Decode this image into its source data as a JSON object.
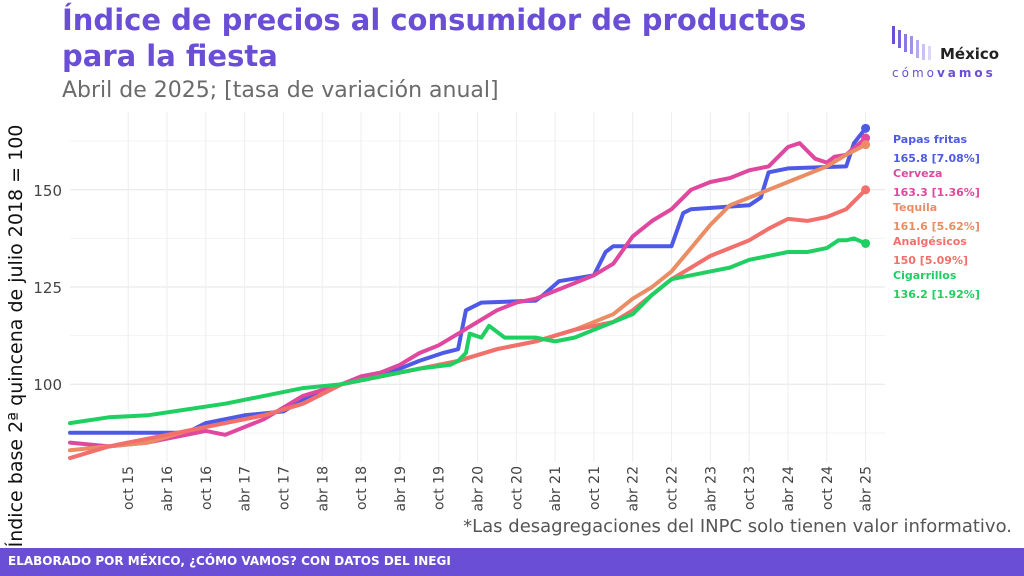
{
  "header": {
    "title": "Índice de precios al consumidor de productos para la fiesta",
    "subtitle": "Abril de 2025; [tasa de variación anual]"
  },
  "logo": {
    "word": "México",
    "sub_a": "cómo",
    "sub_b": "vamos"
  },
  "note": "*Las desagregaciones del INPC solo tienen valor informativo.",
  "footer": {
    "text": "ELABORADO POR MÉXICO, ¿CÓMO VAMOS? CON DATOS DEL INEGI"
  },
  "colors": {
    "accent": "#6a4fd6",
    "papas": "#4e5ae6",
    "cerveza": "#e0479e",
    "tequila": "#ea8d64",
    "analgesicos": "#f2706b",
    "cigarrillos": "#1fcf62"
  },
  "chart_data": {
    "type": "line",
    "title": "Índice de precios al consumidor de productos para la fiesta",
    "subtitle": "Abril de 2025; [tasa de variación anual]",
    "ylabel": "Índice base 2ª quincena de julio 2018 = 100",
    "xlabel": "",
    "xlim": [
      2015.0,
      2025.5
    ],
    "ylim": [
      80,
      170
    ],
    "yticks": [
      100,
      125,
      150
    ],
    "ytick_labels": [
      "100",
      "125",
      "150"
    ],
    "xticks": [
      {
        "x": 2015.75,
        "label": "oct 15"
      },
      {
        "x": 2016.25,
        "label": "abr 16"
      },
      {
        "x": 2016.75,
        "label": "oct 16"
      },
      {
        "x": 2017.25,
        "label": "abr 17"
      },
      {
        "x": 2017.75,
        "label": "oct 17"
      },
      {
        "x": 2018.25,
        "label": "abr 18"
      },
      {
        "x": 2018.75,
        "label": "oct 18"
      },
      {
        "x": 2019.25,
        "label": "abr 19"
      },
      {
        "x": 2019.75,
        "label": "oct 19"
      },
      {
        "x": 2020.25,
        "label": "abr 20"
      },
      {
        "x": 2020.75,
        "label": "oct 20"
      },
      {
        "x": 2021.25,
        "label": "abr 21"
      },
      {
        "x": 2021.75,
        "label": "oct 21"
      },
      {
        "x": 2022.25,
        "label": "abr 22"
      },
      {
        "x": 2022.75,
        "label": "oct 22"
      },
      {
        "x": 2023.25,
        "label": "abr 23"
      },
      {
        "x": 2023.75,
        "label": "oct 23"
      },
      {
        "x": 2024.25,
        "label": "abr 24"
      },
      {
        "x": 2024.75,
        "label": "oct 24"
      },
      {
        "x": 2025.25,
        "label": "abr 25"
      }
    ],
    "grid": true,
    "legend": "right",
    "series": [
      {
        "name": "Papas fritas",
        "end_label": "165.8 [7.08%]",
        "color": "#4e5ae6",
        "points": [
          [
            2015.0,
            87.5
          ],
          [
            2016.5,
            87.5
          ],
          [
            2016.75,
            90
          ],
          [
            2017.25,
            92
          ],
          [
            2017.75,
            93
          ],
          [
            2018.0,
            96
          ],
          [
            2018.5,
            100
          ],
          [
            2019.0,
            102
          ],
          [
            2019.5,
            106
          ],
          [
            2019.8,
            108
          ],
          [
            2020.0,
            109
          ],
          [
            2020.1,
            119
          ],
          [
            2020.3,
            121
          ],
          [
            2021.0,
            121.5
          ],
          [
            2021.1,
            123
          ],
          [
            2021.3,
            126.5
          ],
          [
            2021.75,
            128
          ],
          [
            2021.9,
            134
          ],
          [
            2022.0,
            135.5
          ],
          [
            2022.75,
            135.5
          ],
          [
            2022.9,
            144
          ],
          [
            2023.0,
            145
          ],
          [
            2023.75,
            146
          ],
          [
            2023.9,
            148
          ],
          [
            2024.0,
            154.5
          ],
          [
            2024.25,
            155.5
          ],
          [
            2025.0,
            156
          ],
          [
            2025.1,
            162
          ],
          [
            2025.25,
            165.8
          ]
        ]
      },
      {
        "name": "Cerveza",
        "end_label": "163.3 [1.36%]",
        "color": "#e0479e",
        "points": [
          [
            2015.0,
            85
          ],
          [
            2015.5,
            84
          ],
          [
            2016.0,
            85
          ],
          [
            2016.5,
            87
          ],
          [
            2016.75,
            88
          ],
          [
            2017.0,
            87
          ],
          [
            2017.5,
            91
          ],
          [
            2018.0,
            97
          ],
          [
            2018.5,
            100
          ],
          [
            2018.75,
            102
          ],
          [
            2019.0,
            103
          ],
          [
            2019.25,
            105
          ],
          [
            2019.5,
            108
          ],
          [
            2019.75,
            110
          ],
          [
            2020.0,
            113
          ],
          [
            2020.25,
            116
          ],
          [
            2020.5,
            119
          ],
          [
            2020.75,
            121
          ],
          [
            2021.0,
            122
          ],
          [
            2021.5,
            126
          ],
          [
            2021.75,
            128
          ],
          [
            2022.0,
            131
          ],
          [
            2022.25,
            138
          ],
          [
            2022.5,
            142
          ],
          [
            2022.75,
            145
          ],
          [
            2023.0,
            150
          ],
          [
            2023.25,
            152
          ],
          [
            2023.5,
            153
          ],
          [
            2023.75,
            155
          ],
          [
            2024.0,
            156
          ],
          [
            2024.25,
            161
          ],
          [
            2024.4,
            162
          ],
          [
            2024.6,
            158
          ],
          [
            2024.75,
            157
          ],
          [
            2024.85,
            158.5
          ],
          [
            2025.0,
            159
          ],
          [
            2025.25,
            163.3
          ]
        ]
      },
      {
        "name": "Tequila",
        "end_label": "161.6 [5.62%]",
        "color": "#ea8d64",
        "points": [
          [
            2015.0,
            83
          ],
          [
            2015.5,
            84
          ],
          [
            2016.0,
            85
          ],
          [
            2016.5,
            88
          ],
          [
            2017.0,
            90
          ],
          [
            2017.5,
            92
          ],
          [
            2018.0,
            95
          ],
          [
            2018.5,
            100
          ],
          [
            2019.0,
            102
          ],
          [
            2019.5,
            104
          ],
          [
            2020.0,
            106
          ],
          [
            2020.5,
            109
          ],
          [
            2021.0,
            111
          ],
          [
            2021.5,
            114
          ],
          [
            2022.0,
            118
          ],
          [
            2022.25,
            122
          ],
          [
            2022.5,
            125
          ],
          [
            2022.75,
            129
          ],
          [
            2023.0,
            135
          ],
          [
            2023.25,
            141
          ],
          [
            2023.5,
            146
          ],
          [
            2023.75,
            148
          ],
          [
            2024.0,
            150
          ],
          [
            2024.25,
            152
          ],
          [
            2024.5,
            154
          ],
          [
            2024.75,
            156
          ],
          [
            2025.0,
            159
          ],
          [
            2025.25,
            161.6
          ]
        ]
      },
      {
        "name": "Analgésicos",
        "end_label": "150 [5.09%]",
        "color": "#f2706b",
        "points": [
          [
            2015.0,
            81
          ],
          [
            2015.5,
            84
          ],
          [
            2016.0,
            86
          ],
          [
            2016.5,
            88
          ],
          [
            2017.0,
            90
          ],
          [
            2017.5,
            92
          ],
          [
            2018.0,
            95
          ],
          [
            2018.5,
            100
          ],
          [
            2019.0,
            102
          ],
          [
            2019.5,
            104
          ],
          [
            2020.0,
            106
          ],
          [
            2020.5,
            109
          ],
          [
            2021.0,
            111
          ],
          [
            2021.5,
            114
          ],
          [
            2021.75,
            115
          ],
          [
            2022.0,
            116
          ],
          [
            2022.25,
            119
          ],
          [
            2022.5,
            123
          ],
          [
            2022.75,
            127
          ],
          [
            2023.0,
            130
          ],
          [
            2023.25,
            133
          ],
          [
            2023.5,
            135
          ],
          [
            2023.75,
            137
          ],
          [
            2024.0,
            140
          ],
          [
            2024.25,
            142.5
          ],
          [
            2024.5,
            142
          ],
          [
            2024.75,
            143
          ],
          [
            2025.0,
            145
          ],
          [
            2025.25,
            150
          ]
        ]
      },
      {
        "name": "Cigarrillos",
        "end_label": "136.2 [1.92%]",
        "color": "#1fcf62",
        "points": [
          [
            2015.0,
            90
          ],
          [
            2015.5,
            91.5
          ],
          [
            2016.0,
            92
          ],
          [
            2016.5,
            93.5
          ],
          [
            2017.0,
            95
          ],
          [
            2017.5,
            97
          ],
          [
            2018.0,
            99
          ],
          [
            2018.5,
            100
          ],
          [
            2019.0,
            102
          ],
          [
            2019.5,
            104
          ],
          [
            2019.9,
            105
          ],
          [
            2020.0,
            106
          ],
          [
            2020.1,
            108
          ],
          [
            2020.15,
            113
          ],
          [
            2020.3,
            112
          ],
          [
            2020.4,
            115
          ],
          [
            2020.6,
            112
          ],
          [
            2021.0,
            112
          ],
          [
            2021.25,
            111
          ],
          [
            2021.5,
            112
          ],
          [
            2021.75,
            114
          ],
          [
            2022.0,
            116
          ],
          [
            2022.25,
            118
          ],
          [
            2022.5,
            123
          ],
          [
            2022.75,
            127
          ],
          [
            2023.0,
            128
          ],
          [
            2023.25,
            129
          ],
          [
            2023.5,
            130
          ],
          [
            2023.75,
            132
          ],
          [
            2024.0,
            133
          ],
          [
            2024.25,
            134
          ],
          [
            2024.5,
            134
          ],
          [
            2024.75,
            135
          ],
          [
            2024.9,
            137
          ],
          [
            2025.0,
            137
          ],
          [
            2025.1,
            137.5
          ],
          [
            2025.25,
            136.2
          ]
        ]
      }
    ]
  }
}
